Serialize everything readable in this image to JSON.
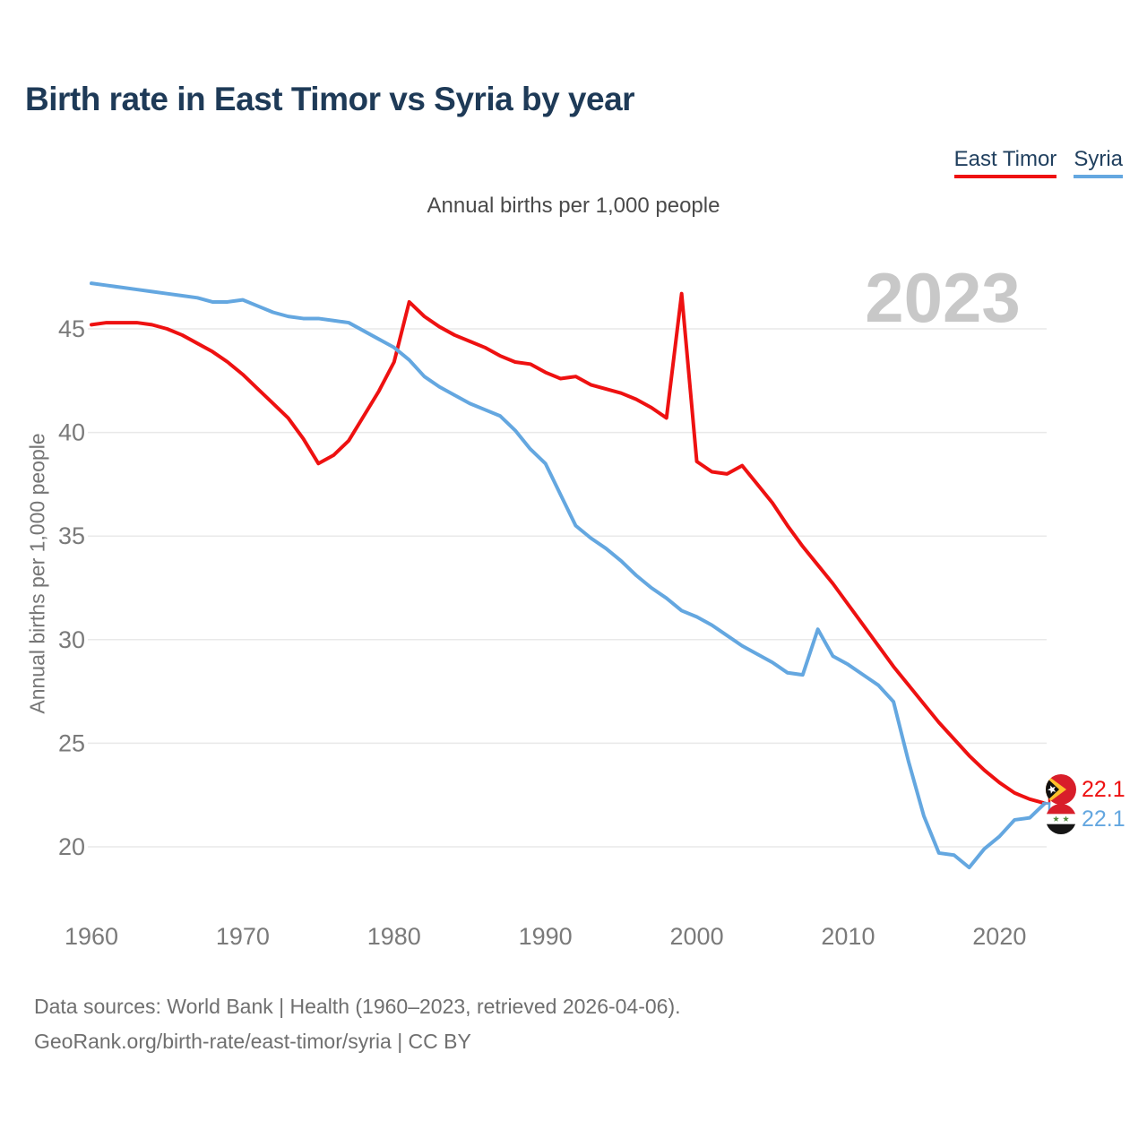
{
  "header": {
    "title": "Birth rate in East Timor vs Syria by year"
  },
  "subtitle": "Annual births per 1,000 people",
  "legend": {
    "east_timor": "East Timor",
    "syria": "Syria"
  },
  "watermark": "2023",
  "end_labels": {
    "east_timor": {
      "value": "22.1",
      "flag": "east-timor-flag"
    },
    "syria": {
      "value": "22.1",
      "flag": "syria-flag"
    }
  },
  "footer": {
    "line1": "Data sources: World Bank | Health (1960–2023, retrieved 2026-04-06).",
    "line2": "GeoRank.org/birth-rate/east-timor/syria | CC BY"
  },
  "colors": {
    "east_timor": "#ee1111",
    "syria": "#64a7e0",
    "title": "#1e3a57",
    "watermark": "#c8c8c8",
    "grid": "#e9e9e9",
    "tick": "#7a7a7a"
  },
  "chart_data": {
    "type": "line",
    "title": "Birth rate in East Timor vs Syria by year",
    "xlabel": "",
    "ylabel": "Annual births per 1,000 people",
    "x": [
      1960,
      1961,
      1962,
      1963,
      1964,
      1965,
      1966,
      1967,
      1968,
      1969,
      1970,
      1971,
      1972,
      1973,
      1974,
      1975,
      1976,
      1977,
      1978,
      1979,
      1980,
      1981,
      1982,
      1983,
      1984,
      1985,
      1986,
      1987,
      1988,
      1989,
      1990,
      1991,
      1992,
      1993,
      1994,
      1995,
      1996,
      1997,
      1998,
      1999,
      2000,
      2001,
      2002,
      2003,
      2004,
      2005,
      2006,
      2007,
      2008,
      2009,
      2010,
      2011,
      2012,
      2013,
      2014,
      2015,
      2016,
      2017,
      2018,
      2019,
      2020,
      2021,
      2022,
      2023
    ],
    "series": [
      {
        "name": "East Timor",
        "color": "#ee1111",
        "values": [
          45.2,
          45.3,
          45.3,
          45.3,
          45.2,
          45.0,
          44.7,
          44.3,
          43.9,
          43.4,
          42.8,
          42.1,
          41.4,
          40.7,
          39.7,
          38.5,
          38.9,
          39.6,
          40.8,
          42.0,
          43.4,
          46.3,
          45.6,
          45.1,
          44.7,
          44.4,
          44.1,
          43.7,
          43.4,
          43.3,
          42.9,
          42.6,
          42.7,
          42.3,
          42.1,
          41.9,
          41.6,
          41.2,
          40.7,
          46.7,
          38.6,
          38.1,
          38.0,
          38.4,
          37.5,
          36.6,
          35.5,
          34.5,
          33.6,
          32.7,
          31.7,
          30.7,
          29.7,
          28.7,
          27.8,
          26.9,
          26.0,
          25.2,
          24.4,
          23.7,
          23.1,
          22.6,
          22.3,
          22.1
        ]
      },
      {
        "name": "Syria",
        "color": "#64a7e0",
        "values": [
          47.2,
          47.1,
          47.0,
          46.9,
          46.8,
          46.7,
          46.6,
          46.5,
          46.3,
          46.3,
          46.4,
          46.1,
          45.8,
          45.6,
          45.5,
          45.5,
          45.4,
          45.3,
          44.9,
          44.5,
          44.1,
          43.5,
          42.7,
          42.2,
          41.8,
          41.4,
          41.1,
          40.8,
          40.1,
          39.2,
          38.5,
          37.0,
          35.5,
          34.9,
          34.4,
          33.8,
          33.1,
          32.5,
          32.0,
          31.4,
          31.1,
          30.7,
          30.2,
          29.7,
          29.3,
          28.9,
          28.4,
          28.3,
          30.5,
          29.2,
          28.8,
          28.3,
          27.8,
          27.0,
          24.1,
          21.5,
          19.7,
          19.6,
          19.0,
          19.9,
          20.5,
          21.3,
          21.4,
          22.1
        ]
      }
    ],
    "xticks": [
      1960,
      1970,
      1980,
      1990,
      2000,
      2010,
      2020
    ],
    "yticks": [
      20,
      25,
      30,
      35,
      40,
      45
    ],
    "xlim": [
      1960,
      2023
    ],
    "ylim": [
      18.5,
      47.5
    ],
    "grid": true,
    "legend_position": "top-right",
    "end_label_year": 2023
  }
}
